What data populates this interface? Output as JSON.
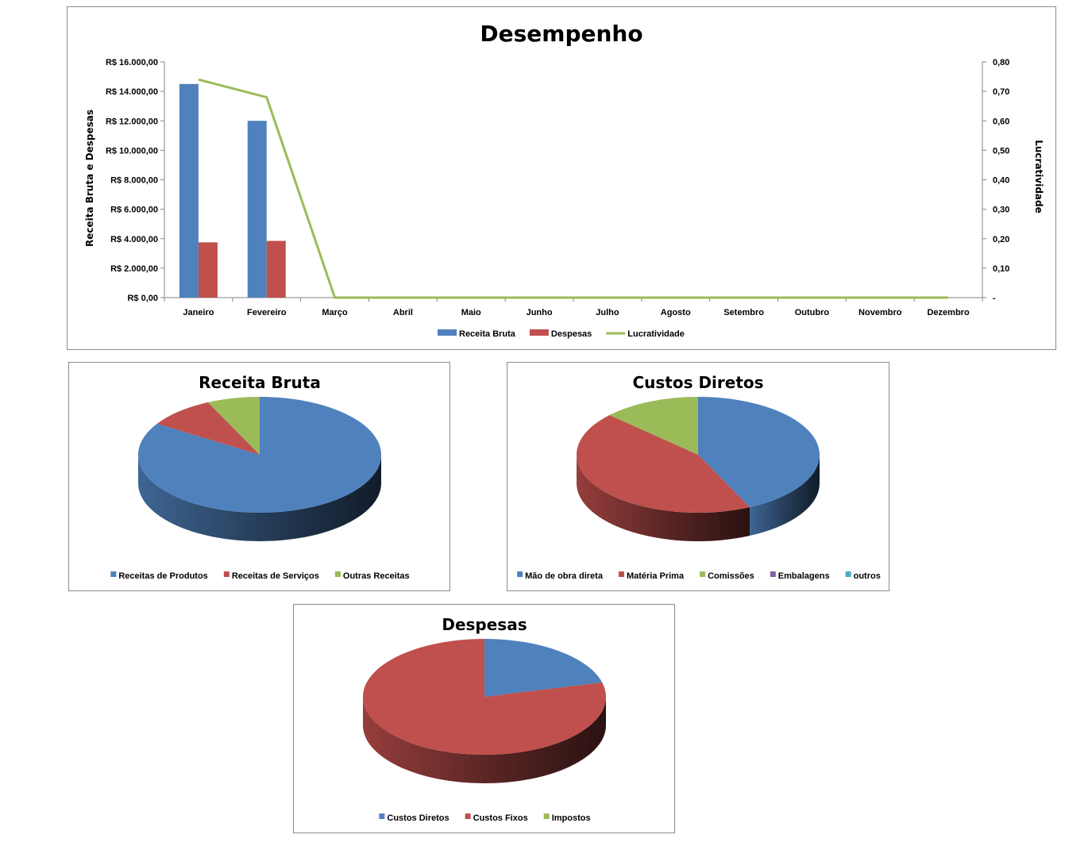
{
  "chart_data": [
    {
      "type": "bar",
      "title": "Desempenho",
      "categories": [
        "Janeiro",
        "Fevereiro",
        "Março",
        "Abril",
        "Maio",
        "Junho",
        "Julho",
        "Agosto",
        "Setembro",
        "Outubro",
        "Novembro",
        "Dezembro"
      ],
      "series": [
        {
          "name": "Receita Bruta",
          "kind": "bar",
          "axis": "left",
          "color": "#4F81BD",
          "values": [
            14500,
            12000,
            0,
            0,
            0,
            0,
            0,
            0,
            0,
            0,
            0,
            0
          ]
        },
        {
          "name": "Despesas",
          "kind": "bar",
          "axis": "left",
          "color": "#C0504D",
          "values": [
            3750,
            3850,
            0,
            0,
            0,
            0,
            0,
            0,
            0,
            0,
            0,
            0
          ]
        },
        {
          "name": "Lucratividade",
          "kind": "line",
          "axis": "right",
          "color": "#9BBB59",
          "values": [
            0.74,
            0.68,
            0,
            0,
            0,
            0,
            0,
            0,
            0,
            0,
            0,
            0
          ]
        }
      ],
      "ylabel": "Receita Bruta e Despesas",
      "y2label": "Lucratividade",
      "ylim": [
        0,
        16000
      ],
      "y2lim": [
        0,
        0.8
      ],
      "yticks": [
        "R$ 0,00",
        "R$ 2.000,00",
        "R$ 4.000,00",
        "R$ 6.000,00",
        "R$ 8.000,00",
        "R$ 10.000,00",
        "R$ 12.000,00",
        "R$ 14.000,00",
        "R$ 16.000,00"
      ],
      "y2ticks": [
        "-",
        "0,10",
        "0,20",
        "0,30",
        "0,40",
        "0,50",
        "0,60",
        "0,70",
        "0,80"
      ],
      "legend_position": "bottom",
      "grid": false
    },
    {
      "type": "pie",
      "title": "Receita Bruta",
      "categories": [
        "Receitas de Produtos",
        "Receitas de Serviços",
        "Outras Receitas"
      ],
      "values": [
        84,
        9,
        7
      ],
      "colors": [
        "#4F81BD",
        "#C0504D",
        "#9BBB59"
      ],
      "legend_position": "bottom"
    },
    {
      "type": "pie",
      "title": "Custos Diretos",
      "categories": [
        "Mão de obra direta",
        "Matéria Prima",
        "Comissões",
        "Embalagens",
        "outros"
      ],
      "values": [
        43,
        44,
        13,
        0,
        0
      ],
      "colors": [
        "#4F81BD",
        "#C0504D",
        "#9BBB59",
        "#8064A2",
        "#4BACC6"
      ],
      "legend_position": "bottom"
    },
    {
      "type": "pie",
      "title": "Despesas",
      "categories": [
        "Custos Diretos",
        "Custos Fixos",
        "Impostos"
      ],
      "values": [
        21,
        79,
        0
      ],
      "colors": [
        "#4F81BD",
        "#C0504D",
        "#9BBB59"
      ],
      "legend_position": "bottom"
    }
  ]
}
